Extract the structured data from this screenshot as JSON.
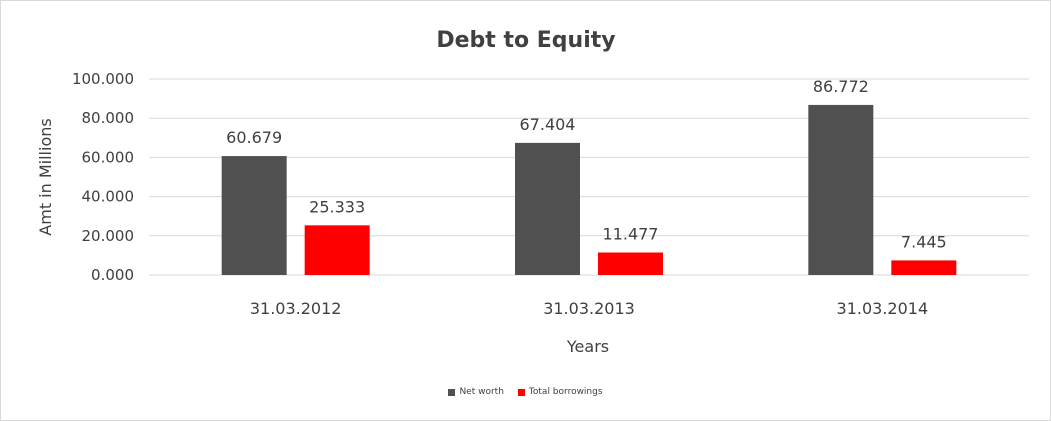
{
  "chart_data": {
    "type": "bar",
    "title": "Debt to Equity",
    "xlabel": "Years",
    "ylabel": "Amt in Millions",
    "categories": [
      "31.03.2012",
      "31.03.2013",
      "31.03.2014"
    ],
    "series": [
      {
        "name": "Net worth",
        "color": "#505050",
        "values": [
          60.679,
          67.404,
          86.772
        ],
        "labels": [
          "60.679",
          "67.404",
          "86.772"
        ]
      },
      {
        "name": "Total borrowings",
        "color": "#ff0000",
        "values": [
          25.333,
          11.477,
          7.445
        ],
        "labels": [
          "25.333",
          "11.477",
          "7.445"
        ]
      }
    ],
    "ylim": [
      0,
      100
    ],
    "yticks": [
      "0.000",
      "20.000",
      "40.000",
      "60.000",
      "80.000",
      "100.000"
    ],
    "grid": true,
    "legend_position": "bottom"
  }
}
